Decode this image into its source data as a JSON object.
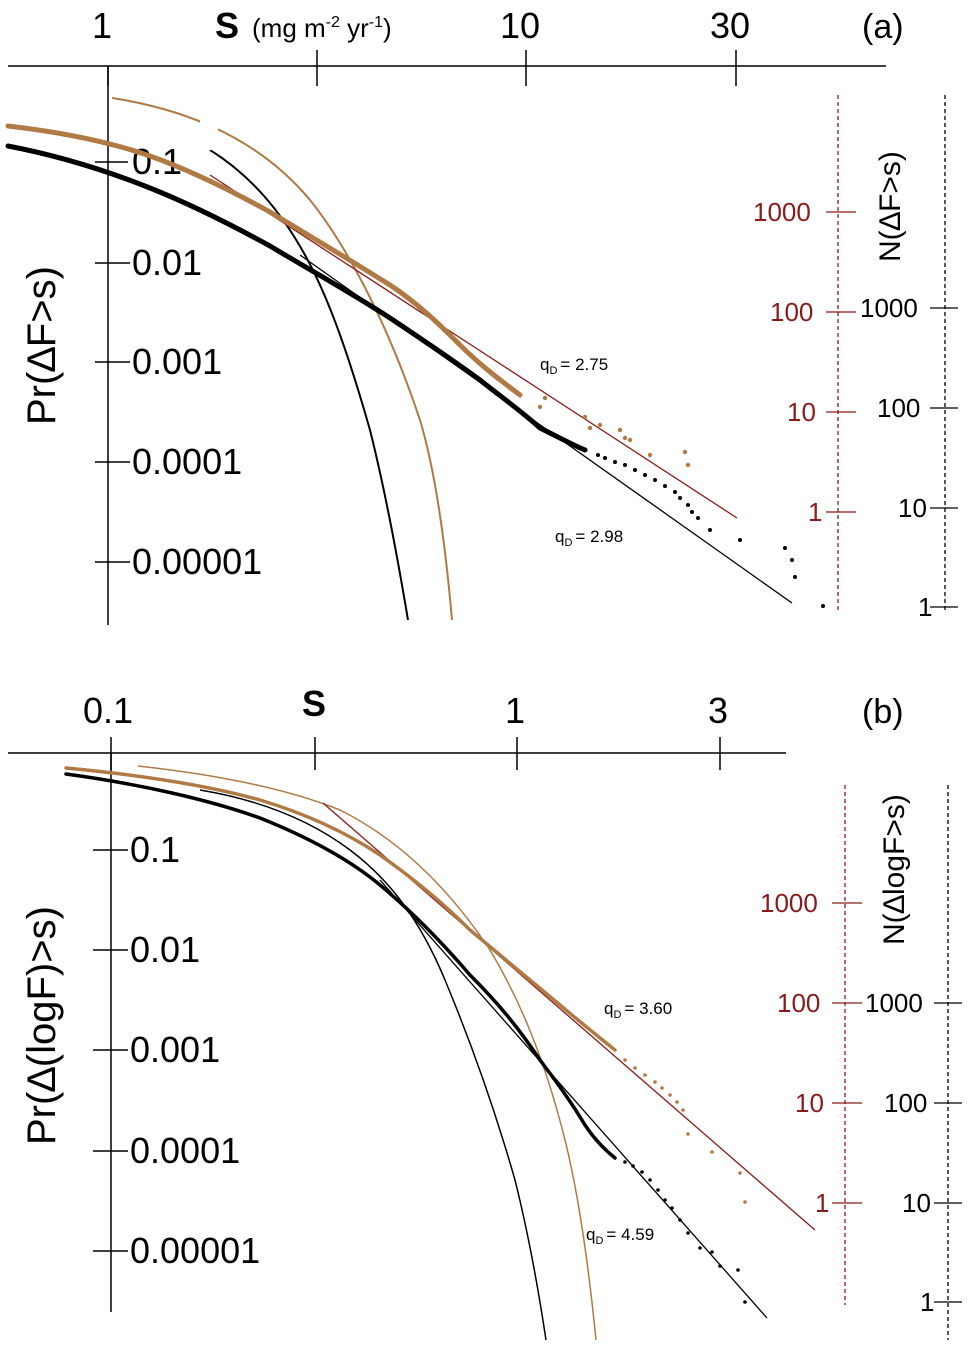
{
  "colors": {
    "black": "#000000",
    "brown": "#b07a45",
    "dark_red": "#8b1a1a"
  },
  "chart_data": [
    {
      "type": "scatter",
      "panel": "(a)",
      "xlabel": "S",
      "xunit": "(mg m",
      "xunit_exp1": "-2",
      "xunit_mid": " yr",
      "xunit_exp2": "-1",
      "xunit_close": ")",
      "ylabel": "Pr(∆F>s)",
      "xscale": "log",
      "x_ticks": [
        1,
        3,
        10,
        30
      ],
      "x_tick_labels": [
        "1",
        "",
        "10",
        "30"
      ],
      "y_ticks": [
        0.1,
        0.01,
        0.001,
        0.0001,
        1e-05
      ],
      "y_tick_labels": [
        "0.1",
        "0.01",
        "0.001",
        "0.0001",
        "0.00001"
      ],
      "right_axes": [
        {
          "label": "N(∆F>s)",
          "color": "#000000",
          "ticks": [
            "1000",
            "100",
            "10",
            "1"
          ]
        },
        {
          "color": "#8b1a1a",
          "ticks": [
            "1000",
            "100",
            "10",
            "1"
          ]
        }
      ],
      "annotations": [
        {
          "text": "q",
          "sub": "D",
          "value": "= 2.75"
        },
        {
          "text": "q",
          "sub": "D",
          "value": "= 2.98"
        }
      ],
      "series": [
        {
          "name": "brown data",
          "color": "#b07a45",
          "x": [
            0.6,
            1,
            1.5,
            2,
            3,
            4,
            5,
            6,
            7,
            8,
            9,
            10,
            12,
            15,
            18,
            20,
            22
          ],
          "y": [
            0.3,
            0.18,
            0.1,
            0.05,
            0.025,
            0.012,
            0.006,
            0.003,
            0.0018,
            0.0011,
            0.0007,
            0.0005,
            0.0003,
            0.0002,
            0.00015,
            0.00012,
            0.0001
          ]
        },
        {
          "name": "black data",
          "color": "#000000",
          "x": [
            0.6,
            1,
            1.5,
            2,
            3,
            4,
            5,
            6,
            7,
            8,
            10,
            12,
            15,
            20,
            25,
            30,
            35,
            40
          ],
          "y": [
            0.2,
            0.12,
            0.06,
            0.03,
            0.01,
            0.005,
            0.0025,
            0.0013,
            0.0008,
            0.0005,
            0.00025,
            0.00015,
            0.0001,
            7e-05,
            4e-05,
            2e-05,
            1e-05,
            4e-06
          ]
        },
        {
          "name": "brown power-law fit",
          "color": "#8b1a1a",
          "qD": 2.75
        },
        {
          "name": "black power-law fit",
          "color": "#000000",
          "qD": 2.98
        },
        {
          "name": "brown exponential",
          "color": "#b07a45"
        },
        {
          "name": "black exponential",
          "color": "#000000"
        }
      ]
    },
    {
      "type": "scatter",
      "panel": "(b)",
      "xlabel": "S",
      "ylabel": "Pr(∆(logF)>s)",
      "xscale": "log",
      "x_ticks": [
        0.1,
        0.3,
        1,
        3
      ],
      "x_tick_labels": [
        "0.1",
        "",
        "1",
        "3"
      ],
      "y_ticks": [
        0.1,
        0.01,
        0.001,
        0.0001,
        1e-05
      ],
      "y_tick_labels": [
        "0.1",
        "0.01",
        "0.001",
        "0.0001",
        "0.00001"
      ],
      "right_axes": [
        {
          "label": "N(∆logF>s)",
          "color": "#000000",
          "ticks": [
            "1000",
            "100",
            "10",
            "1"
          ]
        },
        {
          "color": "#8b1a1a",
          "ticks": [
            "1000",
            "100",
            "10",
            "1"
          ]
        }
      ],
      "annotations": [
        {
          "text": "q",
          "sub": "D",
          "value": "= 3.60"
        },
        {
          "text": "q",
          "sub": "D",
          "value": "= 4.59"
        }
      ],
      "series": [
        {
          "name": "brown data",
          "qD": 3.6,
          "color": "#b07a45"
        },
        {
          "name": "black data",
          "qD": 4.59,
          "color": "#000000"
        }
      ]
    }
  ]
}
